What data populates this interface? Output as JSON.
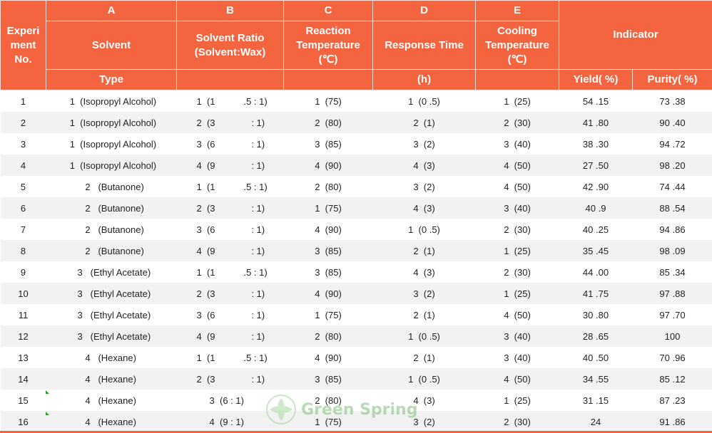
{
  "header": {
    "col_letters": [
      "A",
      "B",
      "C",
      "D",
      "E"
    ],
    "experiment_no": "Experi\nment\nNo.",
    "solvent": "Solvent",
    "solvent_ratio": "Solvent Ratio\n(Solvent:Wax)",
    "reaction_temperature": "Reaction\nTemperature\n(℃)",
    "response_time": "Response Time",
    "cooling_temperature": "Cooling\nTemperature\n(℃)",
    "indicator": "Indicator",
    "type": "Type",
    "response_time_unit": "(h)",
    "yield": "Yield( %)",
    "purity": "Purity( %)"
  },
  "rows": [
    {
      "no": "1",
      "solvent": "  1  (Isopropyl Alcohol)",
      "ratio_a": "1  (1",
      "ratio_b": ".5 : 1)",
      "reaction": "1  (75)",
      "response": "1  (0 .5)",
      "cooling": "1  (25)",
      "yield": "54 .15",
      "purity": "73 .38"
    },
    {
      "no": "2",
      "solvent": "  1  (Isopropyl Alcohol)",
      "ratio_a": "2  (3",
      "ratio_b": "   : 1)",
      "reaction": "2  (80)",
      "response": "2  (1)",
      "cooling": "2  (30)",
      "yield": "41 .80",
      "purity": "90 .40"
    },
    {
      "no": "3",
      "solvent": "  1  (Isopropyl Alcohol)",
      "ratio_a": "3  (6",
      "ratio_b": "   : 1)",
      "reaction": "3  (85)",
      "response": "3  (2)",
      "cooling": "3  (40)",
      "yield": "38 .30",
      "purity": "94 .72"
    },
    {
      "no": "4",
      "solvent": "  1  (Isopropyl Alcohol)",
      "ratio_a": "4  (9",
      "ratio_b": "   : 1)",
      "reaction": "4  (90)",
      "response": "4  (3)",
      "cooling": "4  (50)",
      "yield": "27 .50",
      "purity": "98 .20"
    },
    {
      "no": "5",
      "solvent": "        2   (Butanone)",
      "ratio_a": "1  (1",
      "ratio_b": ".5 : 1)",
      "reaction": "2  (80)",
      "response": "3  (2)",
      "cooling": "4  (50)",
      "yield": "42 .90",
      "purity": "74 .44"
    },
    {
      "no": "6",
      "solvent": "        2   (Butanone)",
      "ratio_a": "2  (3",
      "ratio_b": "   : 1)",
      "reaction": "1  (75)",
      "response": "4  (3)",
      "cooling": "3  (40)",
      "yield": "40 .9",
      "purity": "88 .54"
    },
    {
      "no": "7",
      "solvent": "        2   (Butanone)",
      "ratio_a": "3  (6",
      "ratio_b": "   : 1)",
      "reaction": "4  (90)",
      "response": "1  (0 .5)",
      "cooling": "2  (30)",
      "yield": "40 .25",
      "purity": "94 .86"
    },
    {
      "no": "8",
      "solvent": "        2   (Butanone)",
      "ratio_a": "4  (9",
      "ratio_b": "   : 1)",
      "reaction": "3  (85)",
      "response": "2  (1)",
      "cooling": "1  (25)",
      "yield": "35 .45",
      "purity": "98 .09"
    },
    {
      "no": "9",
      "solvent": "     3   (Ethyl Acetate)",
      "ratio_a": "1  (1",
      "ratio_b": ".5 : 1)",
      "reaction": "3  (85)",
      "response": "4  (3)",
      "cooling": "2  (30)",
      "yield": "44 .00",
      "purity": "85 .34"
    },
    {
      "no": "10",
      "solvent": "     3   (Ethyl Acetate)",
      "ratio_a": "2  (3",
      "ratio_b": "   : 1)",
      "reaction": "4  (90)",
      "response": "3  (2)",
      "cooling": "1  (25)",
      "yield": "41 .75",
      "purity": "97 .88"
    },
    {
      "no": "11",
      "solvent": "     3   (Ethyl Acetate)",
      "ratio_a": "3  (6",
      "ratio_b": "   : 1)",
      "reaction": "1  (75)",
      "response": "2  (1)",
      "cooling": "4  (50)",
      "yield": "30 .80",
      "purity": "97 .70"
    },
    {
      "no": "12",
      "solvent": "     3   (Ethyl Acetate)",
      "ratio_a": "4  (9",
      "ratio_b": "   : 1)",
      "reaction": "2  (80)",
      "response": "1  (0 .5)",
      "cooling": "3  (40)",
      "yield": "28 .65",
      "purity": "100"
    },
    {
      "no": "13",
      "solvent": "        4   (Hexane)",
      "ratio_a": "1  (1",
      "ratio_b": ".5 : 1)",
      "reaction": "4  (90)",
      "response": "2  (1)",
      "cooling": "3  (40)",
      "yield": "40 .50",
      "purity": "70 .96"
    },
    {
      "no": "14",
      "solvent": "        4   (Hexane)",
      "ratio_a": "2  (3",
      "ratio_b": "   : 1)",
      "reaction": "3  (85)",
      "response": "1  (0 .5)",
      "cooling": "4  (50)",
      "yield": "34 .55",
      "purity": "85 .12"
    },
    {
      "no": "15",
      "solvent": "        4   (Hexane)",
      "ratio_a": "     3  (6 : 1)",
      "ratio_b": "",
      "reaction": "2  (80)",
      "response": "4  (3)",
      "cooling": "1  (25)",
      "yield": "31 .15",
      "purity": "87 .23"
    },
    {
      "no": "16",
      "solvent": "        4   (Hexane)",
      "ratio_a": "     4  (9 : 1)",
      "ratio_b": "",
      "reaction": "1  (75)",
      "response": "3  (2)",
      "cooling": "2  (30)",
      "yield": "24",
      "purity": "91 .86"
    }
  ],
  "watermark": {
    "text": "Green Spring",
    "icon": "green-spring-logo-icon"
  }
}
